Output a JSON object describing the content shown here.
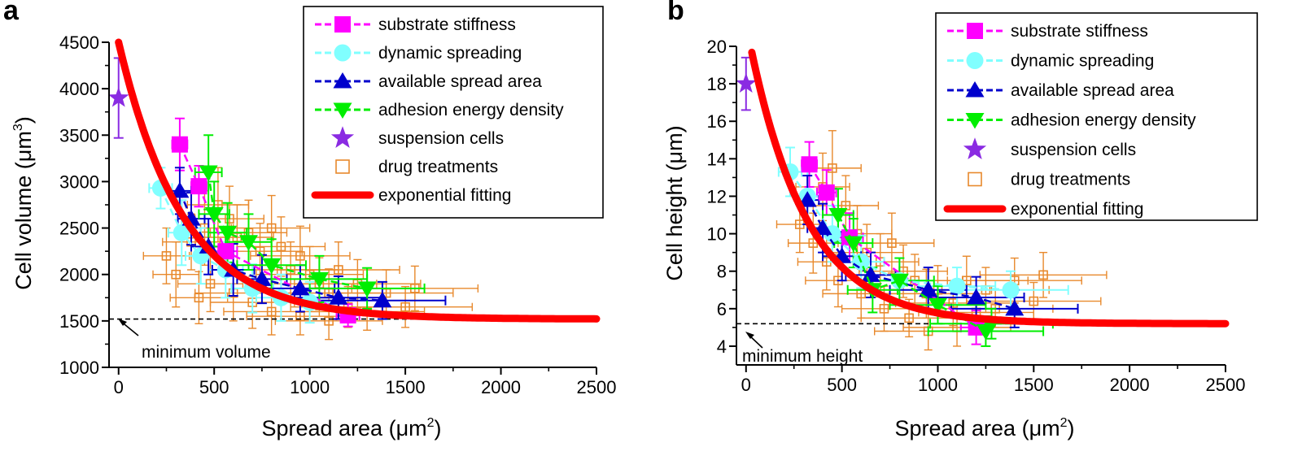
{
  "figure": {
    "panel_a_label": "a",
    "panel_b_label": "b"
  },
  "colors": {
    "substrate_stiffness": "#ff00ff",
    "dynamic_spreading": "#80ffff",
    "available_spread_area": "#0000cc",
    "adhesion_energy_density": "#00ee00",
    "suspension_cells": "#8a2be2",
    "drug_treatments": "#e8892c",
    "exponential_fitting": "#ff0000"
  },
  "chart_data": [
    {
      "type": "scatter",
      "panel": "a",
      "title": "",
      "xlabel": "Spread area",
      "xunit": "(μm",
      "xunit_sup": "2",
      "ylabel": "Cell volume",
      "yunit": "(μm",
      "yunit_sup": "3",
      "xlim": [
        -50,
        2500
      ],
      "ylim": [
        1000,
        4500
      ],
      "xticks": [
        0,
        500,
        1000,
        1500,
        2000,
        2500
      ],
      "yticks": [
        1000,
        1500,
        2000,
        2500,
        3000,
        3500,
        4000,
        4500
      ],
      "legend": [
        "substrate stiffness",
        "dynamic spreading",
        "available spread area",
        "adhesion energy density",
        "suspension cells",
        "drug treatments",
        "exponential fitting"
      ],
      "legend_position": "top-right",
      "annotation": {
        "text": "minimum volume",
        "value": 1520
      },
      "fit": {
        "name": "exponential fitting",
        "min": 1520,
        "amp": 2980,
        "tau": 340
      },
      "series": [
        {
          "name": "substrate stiffness",
          "marker": "square",
          "points": [
            [
              320,
              3400,
              40,
              280
            ],
            [
              420,
              2950,
              40,
              220
            ],
            [
              560,
              2250,
              60,
              250
            ],
            [
              1200,
              1560,
              60,
              120
            ]
          ]
        },
        {
          "name": "dynamic spreading",
          "marker": "circle",
          "points": [
            [
              220,
              2930,
              60,
              220
            ],
            [
              330,
              2450,
              70,
              350
            ],
            [
              430,
              2200,
              80,
              300
            ],
            [
              560,
              2050,
              90,
              300
            ],
            [
              700,
              1850,
              110,
              260
            ],
            [
              850,
              1750,
              130,
              250
            ],
            [
              1000,
              1700,
              150,
              220
            ]
          ]
        },
        {
          "name": "available spread area",
          "marker": "triangle-up",
          "points": [
            [
              320,
              2900,
              60,
              250
            ],
            [
              380,
              2600,
              70,
              280
            ],
            [
              470,
              2300,
              90,
              300
            ],
            [
              600,
              2050,
              110,
              280
            ],
            [
              750,
              1950,
              130,
              260
            ],
            [
              950,
              1850,
              180,
              250
            ],
            [
              1150,
              1750,
              230,
              230
            ],
            [
              1380,
              1720,
              330,
              200
            ]
          ]
        },
        {
          "name": "adhesion energy density",
          "marker": "triangle-down",
          "points": [
            [
              470,
              3100,
              70,
              400
            ],
            [
              500,
              2650,
              80,
              350
            ],
            [
              570,
              2450,
              100,
              320
            ],
            [
              680,
              2350,
              120,
              300
            ],
            [
              800,
              2100,
              180,
              280
            ],
            [
              1050,
              1950,
              250,
              250
            ],
            [
              1300,
              1850,
              300,
              220
            ]
          ]
        },
        {
          "name": "suspension cells",
          "marker": "star",
          "points": [
            [
              0,
              3900,
              0,
              430
            ]
          ]
        }
      ],
      "drug_treatments": [
        [
          250,
          2200,
          120,
          300
        ],
        [
          300,
          2000,
          120,
          350
        ],
        [
          380,
          2350,
          150,
          300
        ],
        [
          450,
          2500,
          140,
          400
        ],
        [
          520,
          2750,
          160,
          400
        ],
        [
          580,
          2600,
          180,
          350
        ],
        [
          620,
          2400,
          190,
          350
        ],
        [
          680,
          2450,
          200,
          350
        ],
        [
          740,
          2250,
          220,
          300
        ],
        [
          800,
          2500,
          200,
          350
        ],
        [
          850,
          2300,
          230,
          320
        ],
        [
          900,
          2050,
          250,
          300
        ],
        [
          950,
          2200,
          260,
          320
        ],
        [
          1000,
          2000,
          280,
          300
        ],
        [
          1050,
          1900,
          300,
          280
        ],
        [
          1100,
          1800,
          300,
          260
        ],
        [
          1150,
          2050,
          320,
          300
        ],
        [
          1250,
          1900,
          330,
          260
        ],
        [
          1400,
          1800,
          350,
          250
        ],
        [
          1550,
          1850,
          330,
          240
        ],
        [
          700,
          1700,
          220,
          280
        ],
        [
          800,
          1600,
          250,
          250
        ],
        [
          950,
          1550,
          280,
          200
        ],
        [
          1100,
          1500,
          280,
          200
        ],
        [
          600,
          1800,
          200,
          300
        ],
        [
          480,
          1900,
          170,
          300
        ],
        [
          420,
          1750,
          150,
          280
        ],
        [
          1300,
          1600,
          300,
          200
        ],
        [
          1500,
          1650,
          350,
          220
        ],
        [
          1200,
          1650,
          300,
          220
        ]
      ]
    },
    {
      "type": "scatter",
      "panel": "b",
      "title": "",
      "xlabel": "Spread area",
      "xunit": "(μm",
      "xunit_sup": "2",
      "ylabel": "Cell height",
      "yunit": "(μm)",
      "xlim": [
        -50,
        2500
      ],
      "ylim": [
        3,
        20
      ],
      "xticks": [
        0,
        500,
        1000,
        1500,
        2000,
        2500
      ],
      "yticks": [
        4,
        6,
        8,
        10,
        12,
        14,
        16,
        18,
        20
      ],
      "legend": [
        "substrate stiffness",
        "dynamic spreading",
        "available spread area",
        "adhesion energy density",
        "suspension cells",
        "drug treatments",
        "exponential fitting"
      ],
      "legend_position": "top-right",
      "annotation": {
        "text": "minimum height",
        "value": 5.2
      },
      "fit": {
        "name": "exponential fitting",
        "min": 5.2,
        "amp": 16.0,
        "tau": 300,
        "x_start": 30
      },
      "series": [
        {
          "name": "substrate stiffness",
          "marker": "square",
          "points": [
            [
              330,
              13.7,
              40,
              1.2
            ],
            [
              420,
              12.2,
              50,
              1.2
            ],
            [
              540,
              9.8,
              70,
              1.3
            ],
            [
              1200,
              5.0,
              80,
              0.9
            ]
          ]
        },
        {
          "name": "dynamic spreading",
          "marker": "circle",
          "points": [
            [
              230,
              13.3,
              60,
              1.3
            ],
            [
              320,
              12.0,
              70,
              1.5
            ],
            [
              450,
              10.0,
              90,
              1.5
            ],
            [
              600,
              8.5,
              120,
              1.4
            ],
            [
              800,
              7.5,
              150,
              1.2
            ],
            [
              1100,
              7.2,
              200,
              1.0
            ],
            [
              1380,
              7.0,
              300,
              1.0
            ]
          ]
        },
        {
          "name": "available spread area",
          "marker": "triangle-up",
          "points": [
            [
              320,
              11.8,
              60,
              1.3
            ],
            [
              400,
              10.3,
              80,
              1.3
            ],
            [
              500,
              8.8,
              100,
              1.3
            ],
            [
              650,
              7.8,
              130,
              1.2
            ],
            [
              950,
              7.0,
              200,
              1.2
            ],
            [
              1200,
              6.6,
              250,
              1.1
            ],
            [
              1400,
              6.0,
              330,
              1.0
            ]
          ]
        },
        {
          "name": "adhesion energy density",
          "marker": "triangle-down",
          "points": [
            [
              480,
              11.0,
              80,
              1.4
            ],
            [
              560,
              9.5,
              100,
              1.3
            ],
            [
              660,
              7.0,
              130,
              1.2
            ],
            [
              800,
              7.5,
              180,
              1.2
            ],
            [
              1000,
              6.2,
              250,
              1.0
            ],
            [
              1250,
              4.8,
              300,
              0.8
            ],
            [
              1280,
              5.2,
              320,
              0.8
            ]
          ]
        },
        {
          "name": "suspension cells",
          "marker": "star",
          "points": [
            [
              0,
              18.0,
              0,
              1.4
            ]
          ]
        }
      ],
      "drug_treatments": [
        [
          280,
          10.5,
          120,
          1.5
        ],
        [
          350,
          9.5,
          130,
          1.6
        ],
        [
          400,
          12.5,
          140,
          1.8
        ],
        [
          450,
          13.5,
          150,
          2.0
        ],
        [
          520,
          11.5,
          170,
          1.6
        ],
        [
          580,
          10.0,
          180,
          1.5
        ],
        [
          630,
          9.0,
          190,
          1.5
        ],
        [
          700,
          8.5,
          200,
          1.5
        ],
        [
          760,
          9.5,
          220,
          1.6
        ],
        [
          820,
          8.0,
          230,
          1.4
        ],
        [
          880,
          7.5,
          250,
          1.4
        ],
        [
          940,
          6.8,
          260,
          1.3
        ],
        [
          1000,
          7.0,
          280,
          1.3
        ],
        [
          1080,
          6.3,
          300,
          1.2
        ],
        [
          1150,
          7.5,
          320,
          1.3
        ],
        [
          1250,
          7.0,
          330,
          1.2
        ],
        [
          1400,
          7.5,
          350,
          1.2
        ],
        [
          1550,
          7.8,
          330,
          1.2
        ],
        [
          720,
          6.0,
          220,
          1.2
        ],
        [
          850,
          5.5,
          250,
          1.0
        ],
        [
          950,
          4.8,
          280,
          1.0
        ],
        [
          1100,
          5.0,
          280,
          1.0
        ],
        [
          600,
          6.8,
          200,
          1.3
        ],
        [
          480,
          7.5,
          170,
          1.4
        ],
        [
          420,
          8.5,
          150,
          1.5
        ],
        [
          1300,
          6.0,
          300,
          1.0
        ],
        [
          1500,
          6.4,
          350,
          1.0
        ],
        [
          1200,
          5.8,
          300,
          1.0
        ]
      ]
    }
  ]
}
